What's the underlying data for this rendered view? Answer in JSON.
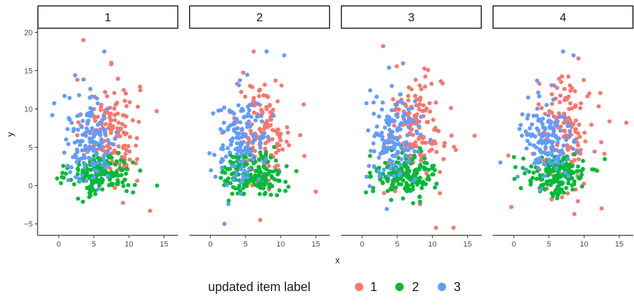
{
  "chart_data": {
    "type": "scatter",
    "facet_by": "panel",
    "panels": [
      "1",
      "2",
      "3",
      "4"
    ],
    "xlabel": "x",
    "ylabel": "y",
    "xlim": [
      -3,
      17
    ],
    "ylim": [
      -6.5,
      20.5
    ],
    "x_ticks": [
      0,
      5,
      10,
      15
    ],
    "y_ticks": [
      -5,
      0,
      5,
      10,
      15,
      20
    ],
    "tick_labels": {
      "x": [
        "0",
        "5",
        "10",
        "15"
      ],
      "y": [
        "−5",
        "0",
        "5",
        "10",
        "15",
        "20"
      ]
    },
    "grid": false,
    "legend": {
      "title": "updated item label",
      "position": "bottom",
      "entries": [
        {
          "label": "1",
          "color": "#F8766D"
        },
        {
          "label": "2",
          "color": "#00BA38"
        },
        {
          "label": "3",
          "color": "#619CFF"
        }
      ]
    },
    "clusters": [
      {
        "group": "1",
        "color": "#F8766D",
        "center": [
          7.5,
          7
        ],
        "sd": [
          2,
          3.5
        ],
        "n": 150
      },
      {
        "group": "2",
        "color": "#00BA38",
        "center": [
          6,
          1.5
        ],
        "sd": [
          2.2,
          1.4
        ],
        "n": 170
      },
      {
        "group": "3",
        "color": "#619CFF",
        "center": [
          4.5,
          6
        ],
        "sd": [
          2,
          3
        ],
        "n": 140
      }
    ],
    "notable_points": [
      {
        "panel": "1",
        "group": "1",
        "x": 3.5,
        "y": 19
      },
      {
        "panel": "1",
        "group": "3",
        "x": 6.5,
        "y": 17.5
      },
      {
        "panel": "1",
        "group": "2",
        "x": 14,
        "y": 0
      },
      {
        "panel": "1",
        "group": "1",
        "x": 13,
        "y": -3.3
      },
      {
        "panel": "2",
        "group": "3",
        "x": 8,
        "y": 17.5
      },
      {
        "panel": "2",
        "group": "3",
        "x": 10.5,
        "y": 17
      },
      {
        "panel": "2",
        "group": "1",
        "x": 15,
        "y": -0.8
      },
      {
        "panel": "2",
        "group": "3",
        "x": 2,
        "y": -5
      },
      {
        "panel": "3",
        "group": "1",
        "x": 3,
        "y": 18.2
      },
      {
        "panel": "3",
        "group": "1",
        "x": 16,
        "y": 6.5
      },
      {
        "panel": "3",
        "group": "1",
        "x": 10.5,
        "y": -5.5
      },
      {
        "panel": "3",
        "group": "1",
        "x": 13,
        "y": -5.5
      },
      {
        "panel": "4",
        "group": "3",
        "x": 7,
        "y": 17.5
      },
      {
        "panel": "4",
        "group": "3",
        "x": 8.5,
        "y": 17
      },
      {
        "panel": "4",
        "group": "1",
        "x": 16,
        "y": 8.2
      },
      {
        "panel": "4",
        "group": "1",
        "x": 12.5,
        "y": -3
      }
    ]
  }
}
